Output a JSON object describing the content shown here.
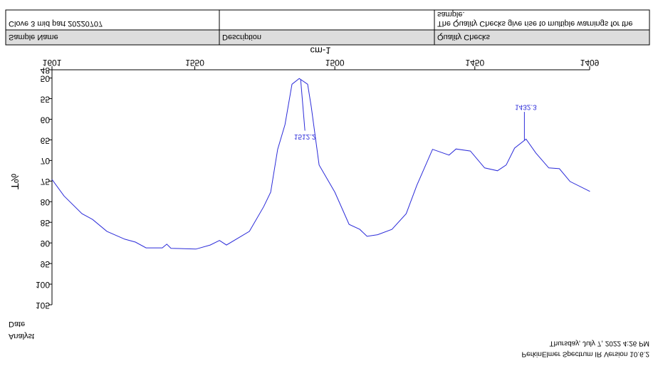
{
  "header": {
    "sample_name_value": "Clove 3 mid part 20220707",
    "quality_checks_value": [
      "The Quality Checks give rise to multiple warnings for the",
      "sample."
    ],
    "sample_name_label": "Sample Name",
    "description_label": "Description",
    "quality_checks_label": "Quality Checks"
  },
  "chart_data": {
    "type": "line",
    "xlabel": "cm-1",
    "ylabel": "T%",
    "xlim": [
      1601,
      1409
    ],
    "xticks": [
      1601,
      1550,
      1500,
      1450,
      1409
    ],
    "ylim": [
      48,
      105
    ],
    "yticks": [
      48,
      50,
      55,
      60,
      65,
      70,
      75,
      80,
      85,
      90,
      95,
      100,
      105
    ],
    "x": [
      1601,
      1596.7,
      1590.3,
      1586.5,
      1581.4,
      1575,
      1571.2,
      1567.4,
      1561.6,
      1560,
      1558.5,
      1549.6,
      1544.5,
      1541.2,
      1538.7,
      1530.5,
      1525.4,
      1522.9,
      1520.4,
      1517.8,
      1515.3,
      1512.7,
      1509.7,
      1508.4,
      1505.6,
      1500,
      1494.9,
      1491.1,
      1488.5,
      1484.7,
      1479.6,
      1474.5,
      1470.7,
      1465.1,
      1459.2,
      1456.7,
      1451.6,
      1446.5,
      1441.9,
      1438.8,
      1435.8,
      1431.7,
      1428.2,
      1423.6,
      1419.8,
      1416,
      1408.9
    ],
    "series": [
      {
        "color": "#2b2bd9",
        "values": [
          74.6,
          78.6,
          82.9,
          84.3,
          87.2,
          89.1,
          89.8,
          91.2,
          91.2,
          90.3,
          91.3,
          91.5,
          90.5,
          89.4,
          90.5,
          87.2,
          81.2,
          77.7,
          67.3,
          61.3,
          51.5,
          50.1,
          51.5,
          57,
          71.1,
          77.7,
          85.5,
          86.7,
          88.4,
          88,
          86.7,
          82.9,
          76,
          67.3,
          68.7,
          67.2,
          67.7,
          71.8,
          72.5,
          71.1,
          67,
          64.8,
          68.2,
          71.8,
          72,
          75.1,
          77.5
        ]
      }
    ],
    "peaks": [
      1512.2,
      1432.3
    ]
  },
  "footer": {
    "date": "Date",
    "analyst": "Analyst",
    "timestamp": "Thursday, July 7, 2022 4:26 PM",
    "software": "PerkinElmer Spectrum IR Version 10.6.2"
  }
}
